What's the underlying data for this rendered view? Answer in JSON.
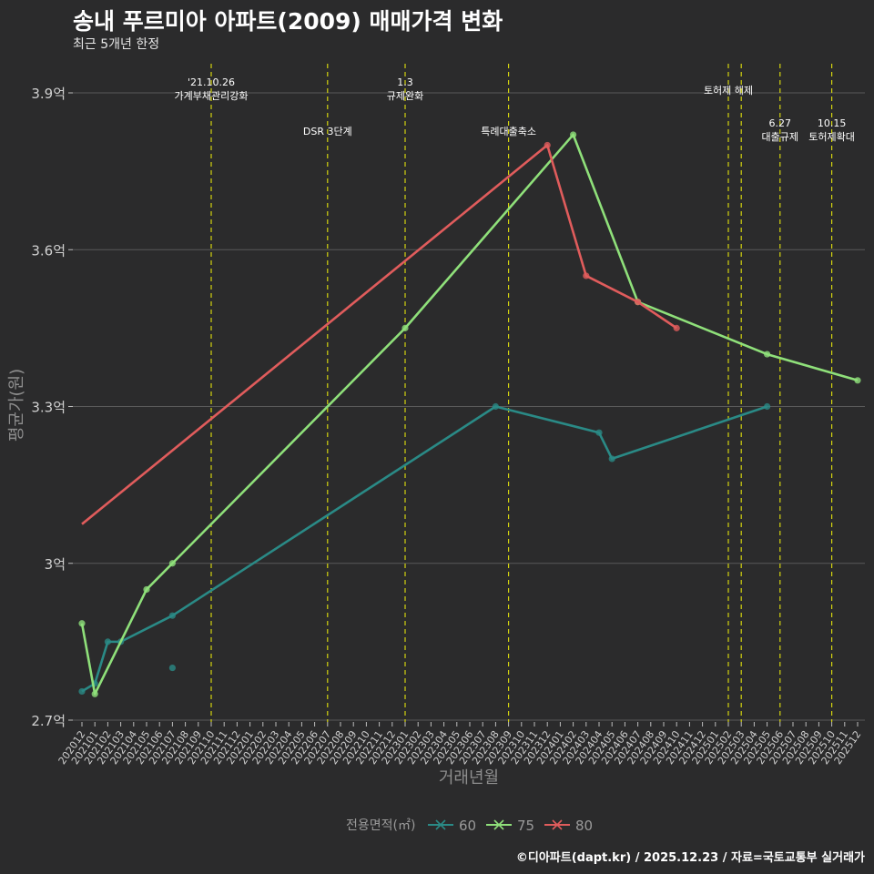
{
  "title": "송내 푸르미아 아파트(2009) 매매가격 변화",
  "subtitle": "최근 5개년 한정",
  "caption": "©디아파트(dapt.kr) / 2025.12.23 / 자료=국토교통부 실거래가",
  "colors": {
    "background": "#2b2b2c",
    "grid": "#5a5a5a",
    "event_line": "#d4d40f",
    "series_60": "#2a8a86",
    "series_75": "#8fe07a",
    "series_80": "#e05c5c"
  },
  "chart_data": {
    "type": "line",
    "xlabel": "거래년월",
    "ylabel": "평균가(원)",
    "ylim": [
      2.7,
      4.0
    ],
    "yticks": [
      2.7,
      3.0,
      3.3,
      3.6,
      3.9
    ],
    "ytick_labels": [
      "2.7억",
      "3억",
      "3.3억",
      "3.6억",
      "3.9억"
    ],
    "categories": [
      "202012",
      "202101",
      "202102",
      "202103",
      "202104",
      "202105",
      "202106",
      "202107",
      "202108",
      "202109",
      "202110",
      "202111",
      "202112",
      "202201",
      "202202",
      "202203",
      "202204",
      "202205",
      "202206",
      "202207",
      "202208",
      "202209",
      "202210",
      "202211",
      "202212",
      "202301",
      "202302",
      "202303",
      "202304",
      "202305",
      "202306",
      "202307",
      "202308",
      "202309",
      "202310",
      "202311",
      "202312",
      "202401",
      "202402",
      "202403",
      "202404",
      "202405",
      "202406",
      "202407",
      "202408",
      "202409",
      "202410",
      "202411",
      "202412",
      "202501",
      "202502",
      "202503",
      "202504",
      "202505",
      "202506",
      "202507",
      "202508",
      "202509",
      "202510",
      "202511",
      "202512"
    ],
    "legend_title": "전용면적(㎡)",
    "legend_position": "bottom",
    "series": [
      {
        "name": "60",
        "color": "#2a8a86",
        "points": [
          [
            "202012",
            2.755
          ],
          [
            "202101",
            2.77
          ],
          [
            "202102",
            2.85
          ],
          [
            "202103",
            2.85
          ],
          [
            "202107",
            2.8
          ],
          [
            "202107",
            2.9
          ],
          [
            "202308",
            3.3
          ],
          [
            "202404",
            3.25
          ],
          [
            "202405",
            3.2
          ],
          [
            "202505",
            3.3
          ]
        ],
        "line": [
          [
            "202012",
            2.755
          ],
          [
            "202101",
            2.77
          ],
          [
            "202102",
            2.85
          ],
          [
            "202103",
            2.85
          ],
          [
            "202107",
            2.9
          ],
          [
            "202308",
            3.3
          ],
          [
            "202404",
            3.25
          ],
          [
            "202405",
            3.2
          ],
          [
            "202505",
            3.3
          ]
        ]
      },
      {
        "name": "75",
        "color": "#8fe07a",
        "points": [
          [
            "202012",
            2.885
          ],
          [
            "202101",
            2.75
          ],
          [
            "202105",
            2.95
          ],
          [
            "202107",
            3.0
          ],
          [
            "202301",
            3.45
          ],
          [
            "202402",
            3.82
          ],
          [
            "202407",
            3.5
          ],
          [
            "202505",
            3.4
          ],
          [
            "202512",
            3.35
          ]
        ],
        "line": [
          [
            "202012",
            2.885
          ],
          [
            "202101",
            2.75
          ],
          [
            "202105",
            2.95
          ],
          [
            "202107",
            3.0
          ],
          [
            "202301",
            3.45
          ],
          [
            "202402",
            3.82
          ],
          [
            "202407",
            3.5
          ],
          [
            "202505",
            3.4
          ],
          [
            "202512",
            3.35
          ]
        ]
      },
      {
        "name": "80",
        "color": "#e05c5c",
        "points": [
          [
            "202312",
            3.8
          ],
          [
            "202403",
            3.55
          ],
          [
            "202407",
            3.5
          ],
          [
            "202410",
            3.45
          ]
        ],
        "line": [
          [
            "202012",
            3.075
          ],
          [
            "202312",
            3.8
          ],
          [
            "202403",
            3.55
          ],
          [
            "202407",
            3.5
          ],
          [
            "202410",
            3.45
          ]
        ]
      }
    ],
    "events": [
      {
        "x": "202110",
        "label": [
          "'21.10.26",
          "가계부채관리강화"
        ],
        "row": 0
      },
      {
        "x": "202207",
        "label": [
          "DSR 3단계"
        ],
        "row": 1
      },
      {
        "x": "202301",
        "label": [
          "1.3",
          "규제완화"
        ],
        "row": 0
      },
      {
        "x": "202309",
        "label": [
          "특례대출축소"
        ],
        "row": 1
      },
      {
        "x": "202502",
        "label": [
          "토허제 해제"
        ],
        "row": 0
      },
      {
        "x": "202503",
        "label": [],
        "row": 0
      },
      {
        "x": "202506",
        "label": [
          "6.27",
          "대출규제"
        ],
        "row": 1
      },
      {
        "x": "202510",
        "label": [
          "10.15",
          "토허제확대"
        ],
        "row": 1
      }
    ]
  }
}
